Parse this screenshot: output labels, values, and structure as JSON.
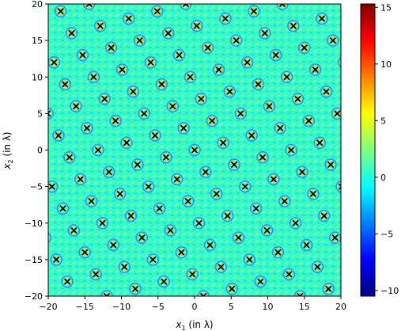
{
  "chart_data": {
    "type": "heatmap",
    "xlabel_var": "x",
    "xlabel_sub": "1",
    "xlabel_unit": " (in λ)",
    "ylabel_var": "x",
    "ylabel_sub": "2",
    "ylabel_unit": " (in λ)",
    "xlim": [
      -20,
      20
    ],
    "ylim": [
      -20,
      20
    ],
    "x_ticks": [
      -20,
      -15,
      -10,
      -5,
      0,
      5,
      10,
      15,
      20
    ],
    "y_ticks": [
      -20,
      -15,
      -10,
      -5,
      0,
      5,
      10,
      15,
      20
    ],
    "x_tick_labels": [
      "−20",
      "−15",
      "−10",
      "−5",
      "0",
      "5",
      "10",
      "15",
      "20"
    ],
    "y_tick_labels": [
      "−20",
      "−15",
      "−10",
      "−5",
      "0",
      "5",
      "10",
      "15",
      "20"
    ],
    "colorbar": {
      "colormap": "jet",
      "range": [
        -10.5,
        15.3
      ],
      "ticks": [
        -10,
        -5,
        0,
        5,
        10,
        15
      ],
      "tick_labels": [
        "−10",
        "−5",
        "0",
        "5",
        "10",
        "15"
      ]
    },
    "field_baseline_value": 0,
    "source_markers": {
      "marker": "x",
      "color": "#000000",
      "lattice_vectors": [
        [
          3.9,
          1.0
        ],
        [
          1.5,
          -3.0
        ]
      ],
      "lattice_origin": [
        0,
        0
      ]
    },
    "grid": false
  }
}
